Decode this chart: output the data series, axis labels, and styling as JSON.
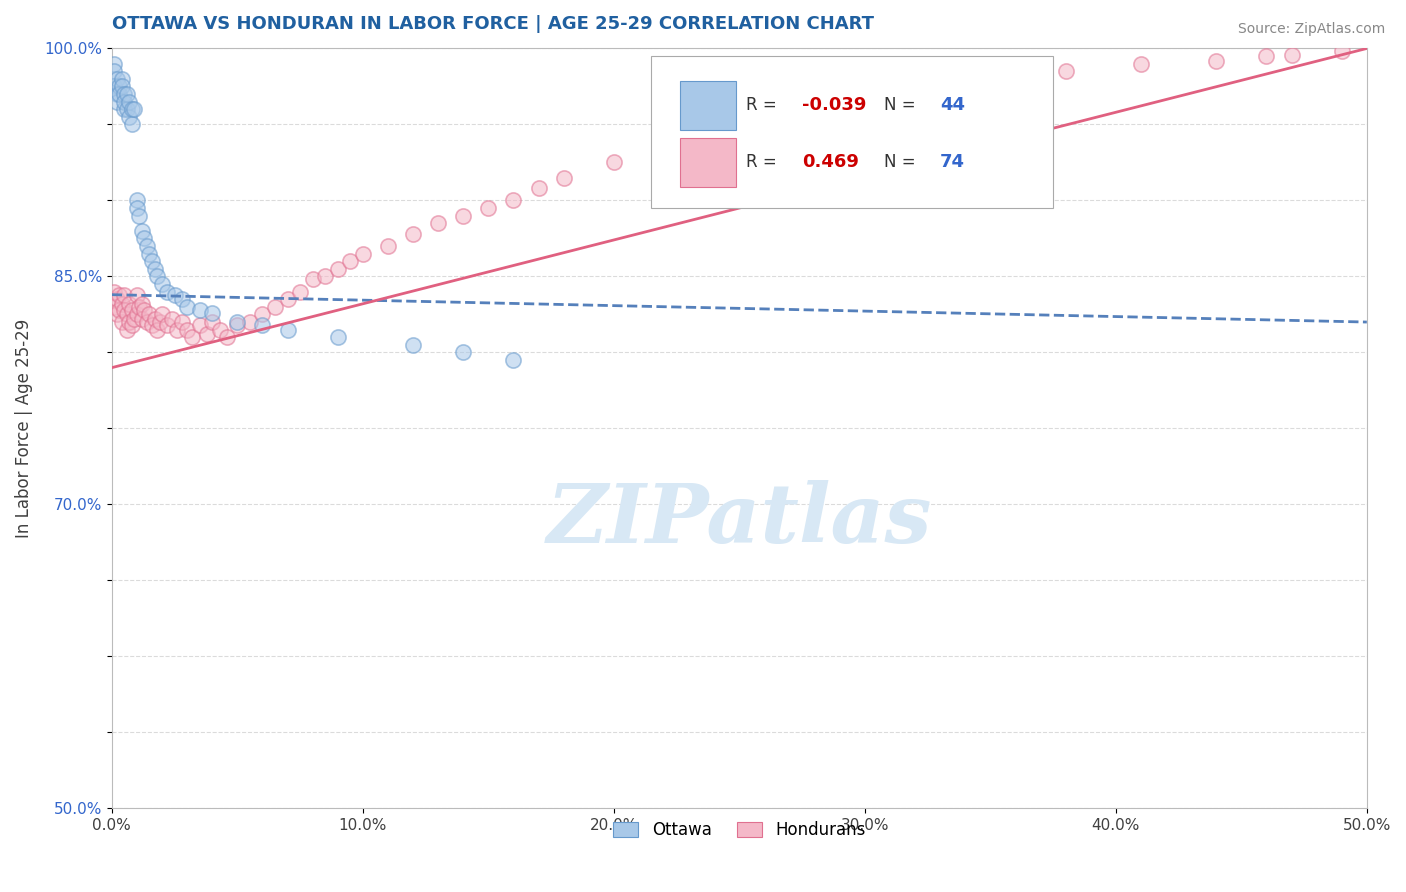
{
  "title": "OTTAWA VS HONDURAN IN LABOR FORCE | AGE 25-29 CORRELATION CHART",
  "source_text": "Source: ZipAtlas.com",
  "ylabel": "In Labor Force | Age 25-29",
  "xlim": [
    0.0,
    0.5
  ],
  "ylim": [
    0.5,
    1.0
  ],
  "xticks": [
    0.0,
    0.1,
    0.2,
    0.3,
    0.4,
    0.5
  ],
  "xticklabels": [
    "0.0%",
    "10.0%",
    "20.0%",
    "30.0%",
    "40.0%",
    "50.0%"
  ],
  "yticks": [
    0.5,
    0.55,
    0.6,
    0.65,
    0.7,
    0.75,
    0.8,
    0.85,
    0.9,
    0.95,
    1.0
  ],
  "yticklabels": [
    "50.0%",
    "",
    "",
    "",
    "70.0%",
    "",
    "",
    "85.0%",
    "",
    "",
    "100.0%"
  ],
  "background_color": "#ffffff",
  "title_color": "#2060a0",
  "title_fontsize": 13,
  "watermark": "ZIPatlas",
  "watermark_color": "#d8e8f5",
  "ottawa_color": "#a8c8e8",
  "honduran_color": "#f4b8c8",
  "ottawa_edge_color": "#6699cc",
  "honduran_edge_color": "#e07090",
  "R_ottawa": -0.039,
  "N_ottawa": 44,
  "R_honduran": 0.469,
  "N_honduran": 74,
  "trend_ottawa_color": "#5580bb",
  "trend_honduran_color": "#e06080",
  "legend_r_color": "#cc0000",
  "legend_n_color": "#3366cc",
  "ottawa_trend_x0": 0.0,
  "ottawa_trend_y0": 0.838,
  "ottawa_trend_x1": 0.5,
  "ottawa_trend_y1": 0.82,
  "honduran_trend_x0": 0.0,
  "honduran_trend_y0": 0.79,
  "honduran_trend_x1": 0.5,
  "honduran_trend_y1": 1.0,
  "ottawa_x": [
    0.001,
    0.001,
    0.001,
    0.002,
    0.002,
    0.002,
    0.003,
    0.003,
    0.004,
    0.004,
    0.005,
    0.005,
    0.005,
    0.006,
    0.006,
    0.007,
    0.007,
    0.008,
    0.008,
    0.009,
    0.01,
    0.01,
    0.011,
    0.012,
    0.013,
    0.014,
    0.015,
    0.016,
    0.017,
    0.018,
    0.02,
    0.022,
    0.025,
    0.028,
    0.03,
    0.035,
    0.04,
    0.05,
    0.06,
    0.07,
    0.09,
    0.12,
    0.14,
    0.16
  ],
  "ottawa_y": [
    0.99,
    0.985,
    0.975,
    0.98,
    0.97,
    0.965,
    0.975,
    0.97,
    0.98,
    0.975,
    0.97,
    0.96,
    0.965,
    0.96,
    0.97,
    0.955,
    0.965,
    0.96,
    0.95,
    0.96,
    0.9,
    0.895,
    0.89,
    0.88,
    0.875,
    0.87,
    0.865,
    0.86,
    0.855,
    0.85,
    0.845,
    0.84,
    0.838,
    0.835,
    0.83,
    0.828,
    0.826,
    0.82,
    0.818,
    0.815,
    0.81,
    0.805,
    0.8,
    0.795
  ],
  "honduran_x": [
    0.001,
    0.001,
    0.002,
    0.002,
    0.003,
    0.003,
    0.004,
    0.004,
    0.005,
    0.005,
    0.006,
    0.006,
    0.007,
    0.007,
    0.008,
    0.008,
    0.009,
    0.01,
    0.01,
    0.011,
    0.012,
    0.012,
    0.013,
    0.014,
    0.015,
    0.016,
    0.017,
    0.018,
    0.019,
    0.02,
    0.022,
    0.024,
    0.026,
    0.028,
    0.03,
    0.032,
    0.035,
    0.038,
    0.04,
    0.043,
    0.046,
    0.05,
    0.055,
    0.06,
    0.065,
    0.07,
    0.075,
    0.08,
    0.085,
    0.09,
    0.095,
    0.1,
    0.11,
    0.12,
    0.13,
    0.14,
    0.15,
    0.16,
    0.17,
    0.18,
    0.2,
    0.22,
    0.24,
    0.26,
    0.28,
    0.3,
    0.32,
    0.35,
    0.38,
    0.41,
    0.44,
    0.46,
    0.47,
    0.49
  ],
  "honduran_y": [
    0.84,
    0.83,
    0.835,
    0.825,
    0.838,
    0.828,
    0.832,
    0.82,
    0.838,
    0.828,
    0.825,
    0.815,
    0.832,
    0.82,
    0.828,
    0.818,
    0.822,
    0.838,
    0.825,
    0.83,
    0.832,
    0.822,
    0.828,
    0.82,
    0.825,
    0.818,
    0.822,
    0.815,
    0.82,
    0.825,
    0.818,
    0.822,
    0.815,
    0.82,
    0.815,
    0.81,
    0.818,
    0.812,
    0.82,
    0.815,
    0.81,
    0.818,
    0.82,
    0.825,
    0.83,
    0.835,
    0.84,
    0.848,
    0.85,
    0.855,
    0.86,
    0.865,
    0.87,
    0.878,
    0.885,
    0.89,
    0.895,
    0.9,
    0.908,
    0.915,
    0.925,
    0.935,
    0.942,
    0.95,
    0.958,
    0.965,
    0.97,
    0.978,
    0.985,
    0.99,
    0.992,
    0.995,
    0.996,
    0.998
  ],
  "marker_size": 120,
  "marker_alpha": 0.55,
  "marker_linewidth": 1.2
}
